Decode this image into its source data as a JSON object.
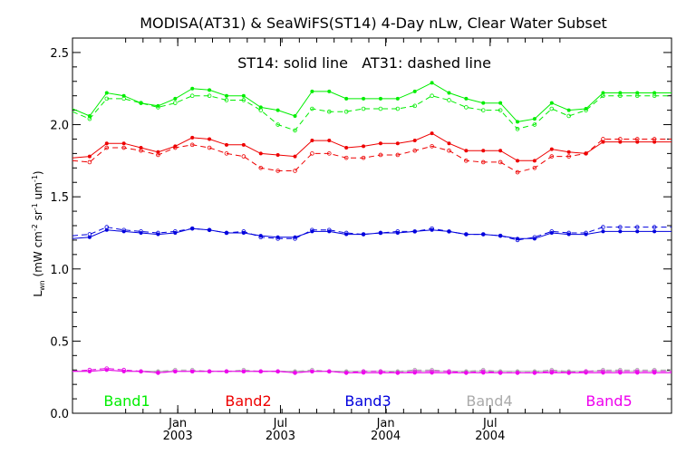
{
  "chart_data": {
    "type": "line",
    "title": "MODISA(AT31) & SeaWiFS(ST14) 4-Day nLw, Clear Water Subset",
    "annotation": "ST14: solid line   AT31: dashed line",
    "ylabel_main": "L",
    "ylabel_sub": "wn",
    "ylabel_rest": " (mW cm",
    "ylabel_sup1": "-2",
    "ylabel_mid": " sr",
    "ylabel_sup2": "-1",
    "ylabel_mid2": " um",
    "ylabel_sup3": "-1",
    "ylabel_end": ")",
    "ylim": [
      0.0,
      2.6
    ],
    "yticks": [
      {
        "v": 0.0,
        "label": "0.0"
      },
      {
        "v": 0.5,
        "label": "0.5"
      },
      {
        "v": 1.0,
        "label": "1.0"
      },
      {
        "v": 1.5,
        "label": "1.5"
      },
      {
        "v": 2.0,
        "label": "2.0"
      },
      {
        "v": 2.5,
        "label": "2.5"
      }
    ],
    "xlim": [
      0,
      700
    ],
    "xticks": [
      {
        "v": 123,
        "line1": "Jan",
        "line2": "2003"
      },
      {
        "v": 243,
        "line1": "Jul",
        "line2": "2003"
      },
      {
        "v": 366,
        "line1": "Jan",
        "line2": "2004"
      },
      {
        "v": 488,
        "line1": "Jul",
        "line2": "2004"
      }
    ],
    "series": [
      {
        "name": "Band1",
        "color": "#00ee00",
        "x": [
          0,
          20,
          40,
          60,
          80,
          100,
          120,
          140,
          160,
          180,
          200,
          220,
          240,
          260,
          280,
          300,
          320,
          340,
          360,
          380,
          400,
          420,
          440,
          460,
          480,
          500,
          520,
          540,
          560,
          580,
          600,
          620,
          640,
          660,
          680,
          700
        ],
        "solid": [
          2.11,
          2.06,
          2.22,
          2.2,
          2.15,
          2.13,
          2.18,
          2.25,
          2.24,
          2.2,
          2.2,
          2.12,
          2.1,
          2.06,
          2.23,
          2.23,
          2.18,
          2.18,
          2.18,
          2.18,
          2.23,
          2.29,
          2.22,
          2.18,
          2.15,
          2.15,
          2.02,
          2.04,
          2.15,
          2.1,
          2.11,
          2.22,
          2.22,
          2.22,
          2.22,
          2.22
        ],
        "dashed": [
          2.09,
          2.04,
          2.18,
          2.18,
          2.15,
          2.12,
          2.15,
          2.2,
          2.2,
          2.17,
          2.17,
          2.1,
          2.0,
          1.96,
          2.11,
          2.09,
          2.09,
          2.11,
          2.11,
          2.11,
          2.13,
          2.2,
          2.17,
          2.12,
          2.1,
          2.1,
          1.97,
          2.0,
          2.11,
          2.06,
          2.1,
          2.2,
          2.2,
          2.2,
          2.2,
          2.2
        ]
      },
      {
        "name": "Band2",
        "color": "#ee0000",
        "x": [
          0,
          20,
          40,
          60,
          80,
          100,
          120,
          140,
          160,
          180,
          200,
          220,
          240,
          260,
          280,
          300,
          320,
          340,
          360,
          380,
          400,
          420,
          440,
          460,
          480,
          500,
          520,
          540,
          560,
          580,
          600,
          620,
          640,
          660,
          680,
          700
        ],
        "solid": [
          1.77,
          1.78,
          1.87,
          1.87,
          1.84,
          1.81,
          1.85,
          1.91,
          1.9,
          1.86,
          1.86,
          1.8,
          1.79,
          1.78,
          1.89,
          1.89,
          1.84,
          1.85,
          1.87,
          1.87,
          1.89,
          1.94,
          1.87,
          1.82,
          1.82,
          1.82,
          1.75,
          1.75,
          1.83,
          1.81,
          1.8,
          1.88,
          1.88,
          1.88,
          1.88,
          1.88
        ],
        "dashed": [
          1.75,
          1.74,
          1.84,
          1.84,
          1.82,
          1.79,
          1.84,
          1.86,
          1.84,
          1.8,
          1.78,
          1.7,
          1.68,
          1.68,
          1.8,
          1.8,
          1.77,
          1.77,
          1.79,
          1.79,
          1.82,
          1.85,
          1.82,
          1.75,
          1.74,
          1.74,
          1.67,
          1.7,
          1.78,
          1.78,
          1.8,
          1.9,
          1.9,
          1.9,
          1.9,
          1.9
        ]
      },
      {
        "name": "Band3",
        "color": "#0000dd",
        "x": [
          0,
          20,
          40,
          60,
          80,
          100,
          120,
          140,
          160,
          180,
          200,
          220,
          240,
          260,
          280,
          300,
          320,
          340,
          360,
          380,
          400,
          420,
          440,
          460,
          480,
          500,
          520,
          540,
          560,
          580,
          600,
          620,
          640,
          660,
          680,
          700
        ],
        "solid": [
          1.21,
          1.22,
          1.27,
          1.26,
          1.25,
          1.24,
          1.25,
          1.28,
          1.27,
          1.25,
          1.25,
          1.23,
          1.22,
          1.22,
          1.26,
          1.26,
          1.24,
          1.24,
          1.25,
          1.25,
          1.26,
          1.27,
          1.26,
          1.24,
          1.24,
          1.23,
          1.21,
          1.21,
          1.25,
          1.24,
          1.24,
          1.26,
          1.26,
          1.26,
          1.26,
          1.26
        ],
        "dashed": [
          1.23,
          1.24,
          1.29,
          1.27,
          1.26,
          1.25,
          1.26,
          1.28,
          1.27,
          1.25,
          1.26,
          1.22,
          1.21,
          1.21,
          1.27,
          1.27,
          1.25,
          1.24,
          1.25,
          1.26,
          1.26,
          1.28,
          1.26,
          1.24,
          1.24,
          1.23,
          1.2,
          1.22,
          1.26,
          1.25,
          1.25,
          1.29,
          1.29,
          1.29,
          1.29,
          1.29
        ]
      },
      {
        "name": "Band4",
        "color": "#aaaaaa",
        "x": [
          0,
          20,
          40,
          60,
          80,
          100,
          120,
          140,
          160,
          180,
          200,
          220,
          240,
          260,
          280,
          300,
          320,
          340,
          360,
          380,
          400,
          420,
          440,
          460,
          480,
          500,
          520,
          540,
          560,
          580,
          600,
          620,
          640,
          660,
          680,
          700
        ],
        "solid": [
          0.29,
          0.29,
          0.3,
          0.29,
          0.29,
          0.29,
          0.29,
          0.29,
          0.29,
          0.29,
          0.29,
          0.29,
          0.29,
          0.29,
          0.29,
          0.29,
          0.29,
          0.29,
          0.29,
          0.29,
          0.29,
          0.29,
          0.29,
          0.29,
          0.29,
          0.29,
          0.29,
          0.29,
          0.29,
          0.29,
          0.29,
          0.29,
          0.29,
          0.29,
          0.29,
          0.29
        ],
        "dashed": [
          0.29,
          0.3,
          0.31,
          0.3,
          0.29,
          0.29,
          0.3,
          0.3,
          0.29,
          0.29,
          0.3,
          0.29,
          0.29,
          0.29,
          0.3,
          0.29,
          0.29,
          0.29,
          0.29,
          0.29,
          0.3,
          0.3,
          0.29,
          0.29,
          0.3,
          0.29,
          0.29,
          0.29,
          0.3,
          0.29,
          0.29,
          0.3,
          0.3,
          0.3,
          0.3,
          0.3
        ]
      },
      {
        "name": "Band5",
        "color": "#ee00ee",
        "x": [
          0,
          20,
          40,
          60,
          80,
          100,
          120,
          140,
          160,
          180,
          200,
          220,
          240,
          260,
          280,
          300,
          320,
          340,
          360,
          380,
          400,
          420,
          440,
          460,
          480,
          500,
          520,
          540,
          560,
          580,
          600,
          620,
          640,
          660,
          680,
          700
        ],
        "solid": [
          0.29,
          0.29,
          0.3,
          0.29,
          0.29,
          0.28,
          0.29,
          0.29,
          0.29,
          0.29,
          0.29,
          0.29,
          0.29,
          0.28,
          0.29,
          0.29,
          0.28,
          0.28,
          0.28,
          0.28,
          0.28,
          0.28,
          0.28,
          0.28,
          0.28,
          0.28,
          0.28,
          0.28,
          0.28,
          0.28,
          0.28,
          0.28,
          0.28,
          0.28,
          0.28,
          0.28
        ],
        "dashed": [
          0.29,
          0.3,
          0.31,
          0.3,
          0.29,
          0.28,
          0.29,
          0.29,
          0.29,
          0.29,
          0.29,
          0.29,
          0.29,
          0.28,
          0.29,
          0.29,
          0.28,
          0.29,
          0.29,
          0.28,
          0.29,
          0.29,
          0.29,
          0.28,
          0.29,
          0.28,
          0.28,
          0.28,
          0.29,
          0.28,
          0.29,
          0.29,
          0.29,
          0.29,
          0.29,
          0.29
        ]
      }
    ],
    "legend": [
      {
        "label": "Band1",
        "color": "#00ee00"
      },
      {
        "label": "Band2",
        "color": "#ee0000"
      },
      {
        "label": "Band3",
        "color": "#0000dd"
      },
      {
        "label": "Band4",
        "color": "#aaaaaa"
      },
      {
        "label": "Band5",
        "color": "#ee00ee"
      }
    ],
    "legend_placement": "bottom"
  }
}
